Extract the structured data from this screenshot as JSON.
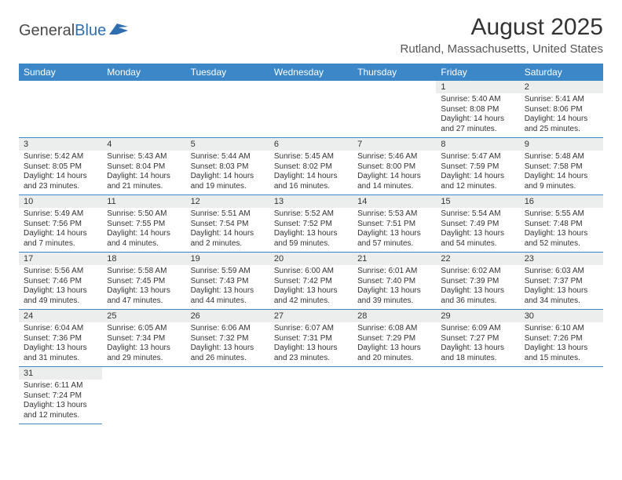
{
  "logo": {
    "word1": "General",
    "word2": "Blue"
  },
  "title": "August 2025",
  "location": "Rutland, Massachusetts, United States",
  "colors": {
    "header_bg": "#3b87c8",
    "header_text": "#ffffff",
    "daynum_bg": "#eceeee",
    "border": "#3b87c8",
    "logo_gray": "#4a4a4a",
    "logo_blue": "#2f6fb0"
  },
  "headers": [
    "Sunday",
    "Monday",
    "Tuesday",
    "Wednesday",
    "Thursday",
    "Friday",
    "Saturday"
  ],
  "grid": [
    [
      null,
      null,
      null,
      null,
      null,
      {
        "n": "1",
        "sr": "5:40 AM",
        "ss": "8:08 PM",
        "dl": "14 hours and 27 minutes."
      },
      {
        "n": "2",
        "sr": "5:41 AM",
        "ss": "8:06 PM",
        "dl": "14 hours and 25 minutes."
      }
    ],
    [
      {
        "n": "3",
        "sr": "5:42 AM",
        "ss": "8:05 PM",
        "dl": "14 hours and 23 minutes."
      },
      {
        "n": "4",
        "sr": "5:43 AM",
        "ss": "8:04 PM",
        "dl": "14 hours and 21 minutes."
      },
      {
        "n": "5",
        "sr": "5:44 AM",
        "ss": "8:03 PM",
        "dl": "14 hours and 19 minutes."
      },
      {
        "n": "6",
        "sr": "5:45 AM",
        "ss": "8:02 PM",
        "dl": "14 hours and 16 minutes."
      },
      {
        "n": "7",
        "sr": "5:46 AM",
        "ss": "8:00 PM",
        "dl": "14 hours and 14 minutes."
      },
      {
        "n": "8",
        "sr": "5:47 AM",
        "ss": "7:59 PM",
        "dl": "14 hours and 12 minutes."
      },
      {
        "n": "9",
        "sr": "5:48 AM",
        "ss": "7:58 PM",
        "dl": "14 hours and 9 minutes."
      }
    ],
    [
      {
        "n": "10",
        "sr": "5:49 AM",
        "ss": "7:56 PM",
        "dl": "14 hours and 7 minutes."
      },
      {
        "n": "11",
        "sr": "5:50 AM",
        "ss": "7:55 PM",
        "dl": "14 hours and 4 minutes."
      },
      {
        "n": "12",
        "sr": "5:51 AM",
        "ss": "7:54 PM",
        "dl": "14 hours and 2 minutes."
      },
      {
        "n": "13",
        "sr": "5:52 AM",
        "ss": "7:52 PM",
        "dl": "13 hours and 59 minutes."
      },
      {
        "n": "14",
        "sr": "5:53 AM",
        "ss": "7:51 PM",
        "dl": "13 hours and 57 minutes."
      },
      {
        "n": "15",
        "sr": "5:54 AM",
        "ss": "7:49 PM",
        "dl": "13 hours and 54 minutes."
      },
      {
        "n": "16",
        "sr": "5:55 AM",
        "ss": "7:48 PM",
        "dl": "13 hours and 52 minutes."
      }
    ],
    [
      {
        "n": "17",
        "sr": "5:56 AM",
        "ss": "7:46 PM",
        "dl": "13 hours and 49 minutes."
      },
      {
        "n": "18",
        "sr": "5:58 AM",
        "ss": "7:45 PM",
        "dl": "13 hours and 47 minutes."
      },
      {
        "n": "19",
        "sr": "5:59 AM",
        "ss": "7:43 PM",
        "dl": "13 hours and 44 minutes."
      },
      {
        "n": "20",
        "sr": "6:00 AM",
        "ss": "7:42 PM",
        "dl": "13 hours and 42 minutes."
      },
      {
        "n": "21",
        "sr": "6:01 AM",
        "ss": "7:40 PM",
        "dl": "13 hours and 39 minutes."
      },
      {
        "n": "22",
        "sr": "6:02 AM",
        "ss": "7:39 PM",
        "dl": "13 hours and 36 minutes."
      },
      {
        "n": "23",
        "sr": "6:03 AM",
        "ss": "7:37 PM",
        "dl": "13 hours and 34 minutes."
      }
    ],
    [
      {
        "n": "24",
        "sr": "6:04 AM",
        "ss": "7:36 PM",
        "dl": "13 hours and 31 minutes."
      },
      {
        "n": "25",
        "sr": "6:05 AM",
        "ss": "7:34 PM",
        "dl": "13 hours and 29 minutes."
      },
      {
        "n": "26",
        "sr": "6:06 AM",
        "ss": "7:32 PM",
        "dl": "13 hours and 26 minutes."
      },
      {
        "n": "27",
        "sr": "6:07 AM",
        "ss": "7:31 PM",
        "dl": "13 hours and 23 minutes."
      },
      {
        "n": "28",
        "sr": "6:08 AM",
        "ss": "7:29 PM",
        "dl": "13 hours and 20 minutes."
      },
      {
        "n": "29",
        "sr": "6:09 AM",
        "ss": "7:27 PM",
        "dl": "13 hours and 18 minutes."
      },
      {
        "n": "30",
        "sr": "6:10 AM",
        "ss": "7:26 PM",
        "dl": "13 hours and 15 minutes."
      }
    ],
    [
      {
        "n": "31",
        "sr": "6:11 AM",
        "ss": "7:24 PM",
        "dl": "13 hours and 12 minutes."
      },
      null,
      null,
      null,
      null,
      null,
      null
    ]
  ],
  "labels": {
    "sunrise": "Sunrise: ",
    "sunset": "Sunset: ",
    "daylight": "Daylight: "
  }
}
